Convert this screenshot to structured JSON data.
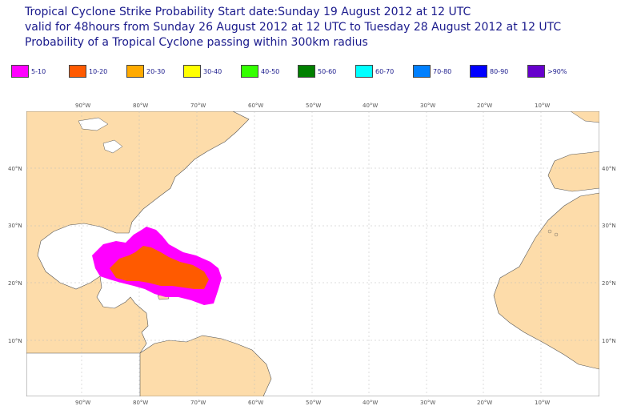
{
  "title": {
    "line1": "Tropical Cyclone Strike Probability Start date:Sunday 19 August 2012 at 12 UTC",
    "line2": "valid for 48hours from Sunday 26 August 2012 at 12 UTC to  Tuesday 28 August 2012 at 12 UTC",
    "line3": "Probability of a Tropical Cyclone passing within 300km radius"
  },
  "legend": [
    {
      "label": "5-10",
      "color": "#ff00ff"
    },
    {
      "label": "10-20",
      "color": "#ff5a00"
    },
    {
      "label": "20-30",
      "color": "#ffaa00"
    },
    {
      "label": "30-40",
      "color": "#ffff00"
    },
    {
      "label": "40-50",
      "color": "#33ff00"
    },
    {
      "label": "50-60",
      "color": "#008000"
    },
    {
      "label": "60-70",
      "color": "#00ffff"
    },
    {
      "label": "70-80",
      "color": "#0080ff"
    },
    {
      "label": "80-90",
      "color": "#0000ff"
    },
    {
      "label": ">90%",
      "color": "#6600cc"
    }
  ],
  "map": {
    "land_color": "#fddcaa",
    "ocean_color": "#ffffff",
    "grid_color": "#bbbbbb",
    "lon_ticks": [
      "90°W",
      "80°W",
      "70°W",
      "60°W",
      "50°W",
      "40°W",
      "30°W",
      "20°W",
      "10°W"
    ],
    "lat_ticks": [
      "40°N",
      "30°N",
      "20°N",
      "10°N"
    ]
  },
  "probability_regions": [
    {
      "band": "5-10",
      "color": "#ff00ff"
    },
    {
      "band": "10-20",
      "color": "#ff5a00"
    }
  ]
}
